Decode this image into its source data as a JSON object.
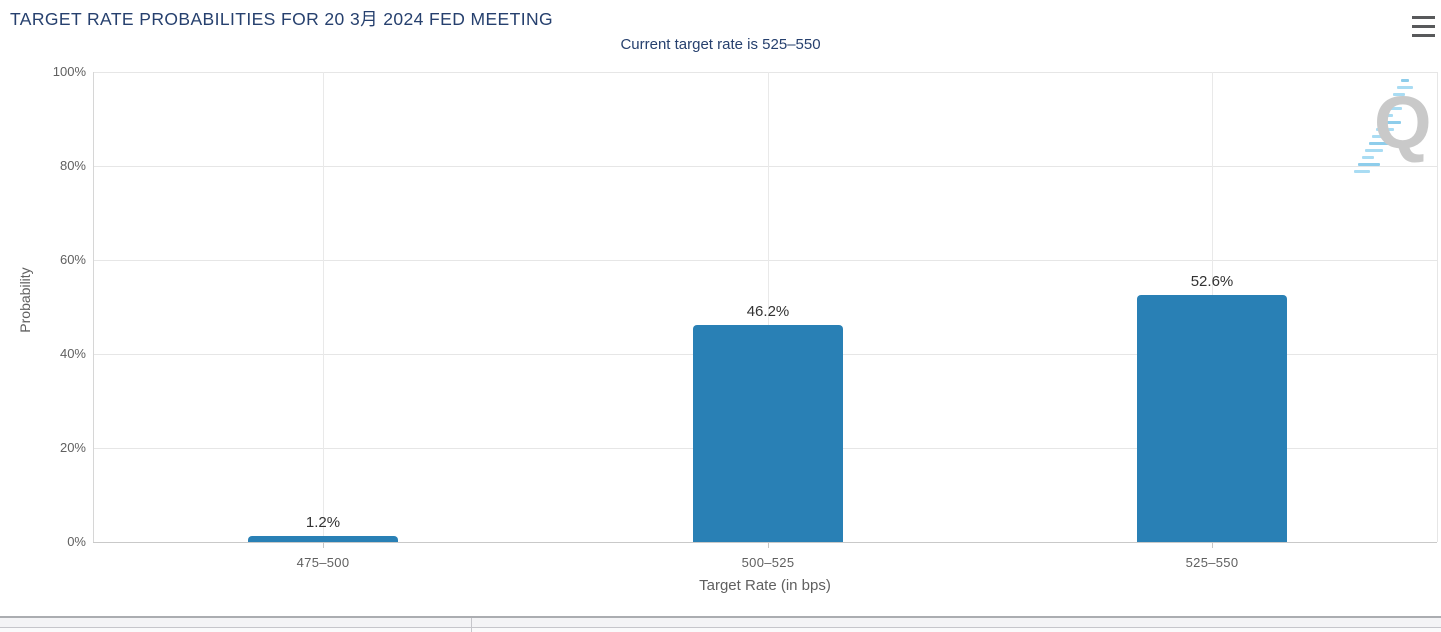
{
  "header": {
    "title": "TARGET RATE PROBABILITIES FOR 20 3月 2024 FED MEETING",
    "subtitle": "Current target rate is 525–550"
  },
  "toolbar": {
    "menu_icon": "hamburger-menu-icon"
  },
  "chart_data": {
    "type": "bar",
    "categories": [
      "475–500",
      "500–525",
      "525–550"
    ],
    "values": [
      1.2,
      46.2,
      52.6
    ],
    "data_labels": [
      "1.2%",
      "46.2%",
      "52.6%"
    ],
    "title": "TARGET RATE PROBABILITIES FOR 20 3月 2024 FED MEETING",
    "subtitle": "Current target rate is 525–550",
    "xlabel": "Target Rate (in bps)",
    "ylabel": "Probability",
    "ylim": [
      0,
      100
    ],
    "ytick_pcts": [
      0,
      20,
      40,
      60,
      80,
      100
    ],
    "ytick_labels": [
      "0%",
      "20%",
      "40%",
      "60%",
      "80%",
      "100%"
    ],
    "grid": true,
    "legend": "none",
    "bar_color": "#2980b5"
  },
  "colors": {
    "title_text": "#26406e",
    "axis_text": "#606060",
    "bar": "#2980b5",
    "gridline": "#e6e6e6",
    "watermark_q": "#c9c9c9",
    "watermark_dash": "#a9dcf3"
  },
  "watermark": {
    "letter": "Q"
  }
}
